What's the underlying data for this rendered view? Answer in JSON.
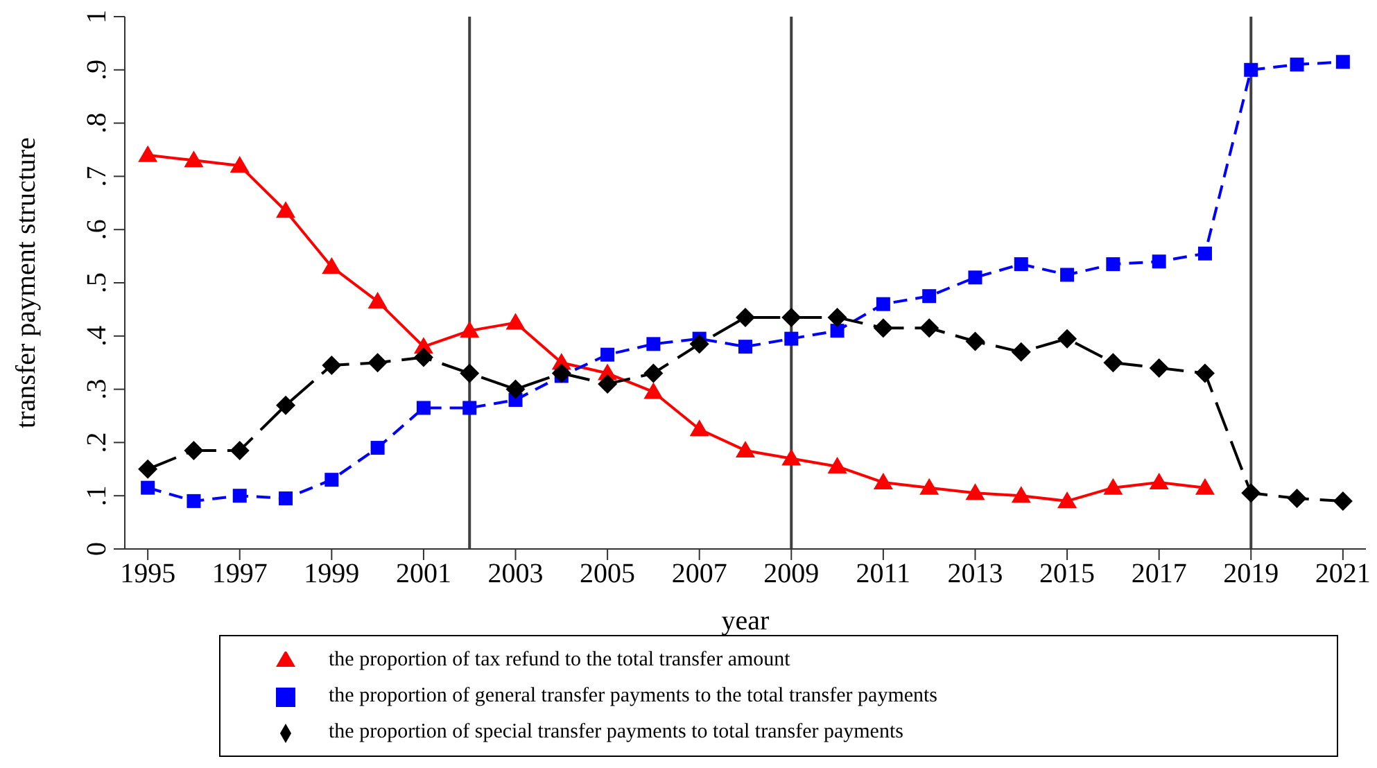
{
  "chart_data": {
    "type": "line",
    "xlabel": "year",
    "ylabel": "transfer payment structure",
    "x": [
      1995,
      1996,
      1997,
      1998,
      1999,
      2000,
      2001,
      2002,
      2003,
      2004,
      2005,
      2006,
      2007,
      2008,
      2009,
      2010,
      2011,
      2012,
      2013,
      2014,
      2015,
      2016,
      2017,
      2018,
      2019,
      2020,
      2021
    ],
    "series": [
      {
        "name": "the proportion of tax refund to the total transfer amount",
        "color": "#ff0000",
        "marker": "triangle",
        "line_style": "solid",
        "values": [
          0.74,
          0.73,
          0.72,
          0.635,
          0.53,
          0.465,
          0.38,
          0.41,
          0.425,
          0.35,
          0.33,
          0.295,
          0.225,
          0.185,
          0.17,
          0.155,
          0.125,
          0.115,
          0.105,
          0.1,
          0.09,
          0.115,
          0.125,
          0.115,
          null,
          null,
          null
        ]
      },
      {
        "name": "the proportion of general transfer payments to the total transfer payments",
        "color": "#0000ff",
        "marker": "square",
        "line_style": "dashed",
        "values": [
          0.115,
          0.09,
          0.1,
          0.095,
          0.13,
          0.19,
          0.265,
          0.265,
          0.28,
          0.325,
          0.365,
          0.385,
          0.395,
          0.38,
          0.395,
          0.41,
          0.46,
          0.475,
          0.51,
          0.535,
          0.515,
          0.535,
          0.54,
          0.555,
          0.9,
          0.91,
          0.915
        ]
      },
      {
        "name": "the proportion of special transfer payments to total transfer payments",
        "color": "#000000",
        "marker": "diamond",
        "line_style": "longdash",
        "values": [
          0.15,
          0.185,
          0.185,
          0.27,
          0.345,
          0.35,
          0.36,
          0.33,
          0.3,
          0.33,
          0.31,
          0.33,
          0.385,
          0.435,
          0.435,
          0.435,
          0.415,
          0.415,
          0.39,
          0.37,
          0.395,
          0.35,
          0.34,
          0.33,
          0.105,
          0.095,
          0.09
        ]
      }
    ],
    "xlim": [
      1994.5,
      2021.5
    ],
    "xticks": [
      1995,
      1997,
      1999,
      2001,
      2003,
      2005,
      2007,
      2009,
      2011,
      2013,
      2015,
      2017,
      2019,
      2021
    ],
    "ylim": [
      0,
      1
    ],
    "yticks": [
      0,
      {
        "value": 0.1,
        "label": ".1"
      },
      {
        "value": 0.2,
        "label": ".2"
      },
      {
        "value": 0.3,
        "label": ".3"
      },
      {
        "value": 0.4,
        "label": ".4"
      },
      {
        "value": 0.5,
        "label": ".5"
      },
      {
        "value": 0.6,
        "label": ".6"
      },
      {
        "value": 0.7,
        "label": ".7"
      },
      {
        "value": 0.8,
        "label": ".8"
      },
      {
        "value": 0.9,
        "label": ".9"
      },
      1
    ],
    "ref_lines": [
      {
        "axis": "x",
        "value": 2002,
        "color": "#404040"
      },
      {
        "axis": "x",
        "value": 2009,
        "color": "#404040"
      },
      {
        "axis": "x",
        "value": 2019,
        "color": "#404040"
      }
    ],
    "grid": false,
    "legend": "bottom"
  }
}
